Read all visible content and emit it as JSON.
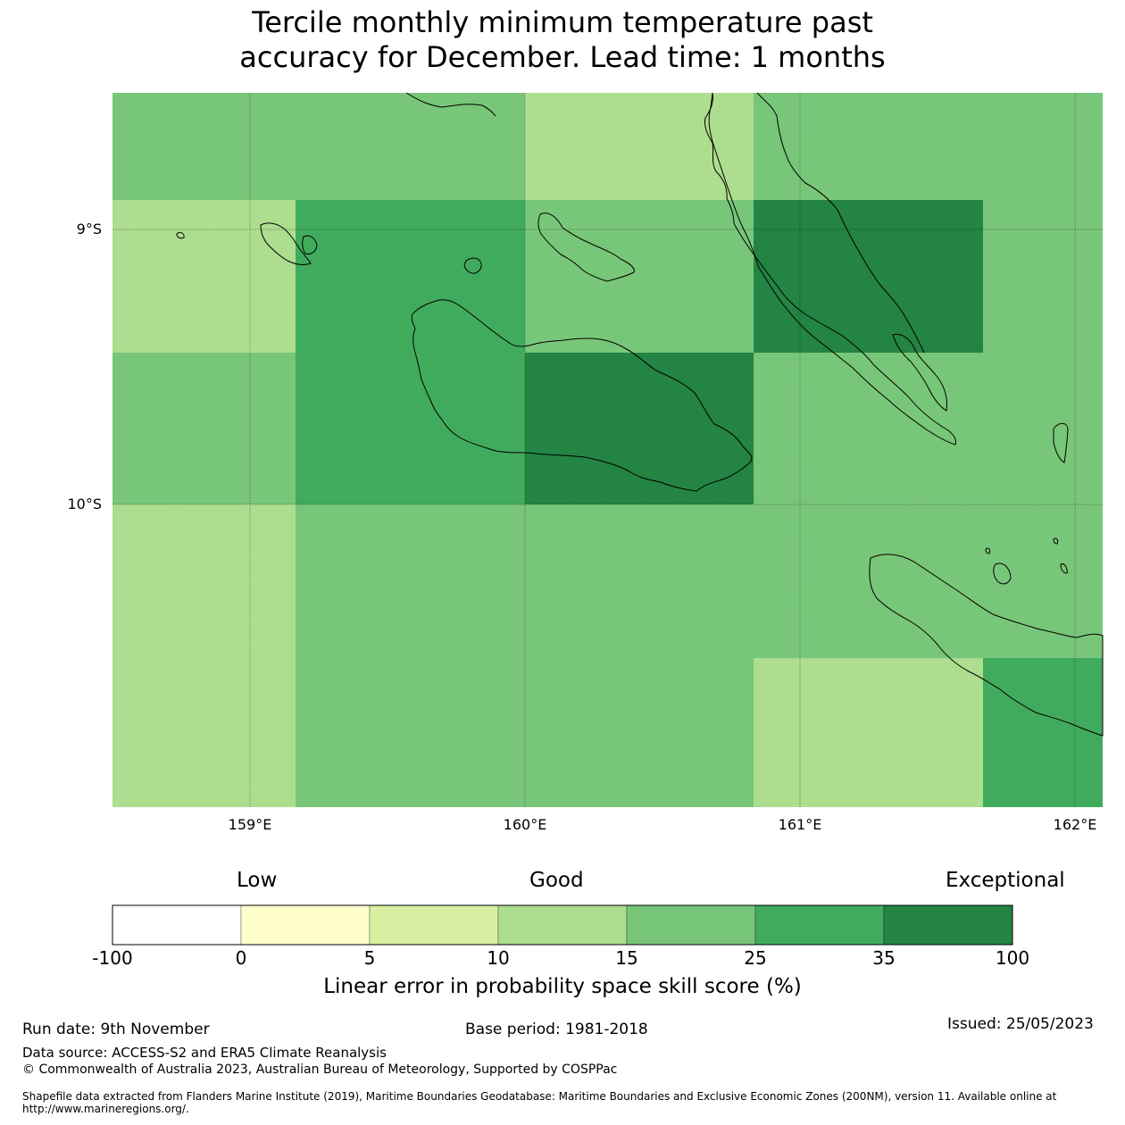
{
  "title": {
    "line1": "Tercile monthly minimum temperature past",
    "line2": "accuracy for December. Lead time: 1 months"
  },
  "map": {
    "lat_labels": [
      "9°S",
      "10°S"
    ],
    "lon_labels": [
      "159°E",
      "160°E",
      "161°E",
      "162°E"
    ],
    "grid_values_percent": [
      [
        25,
        25,
        15,
        25,
        25
      ],
      [
        15,
        35,
        25,
        100,
        25
      ],
      [
        25,
        35,
        100,
        25,
        25
      ],
      [
        15,
        25,
        25,
        25,
        25
      ],
      [
        15,
        25,
        25,
        15,
        35
      ]
    ],
    "cell_colors_note": "bins per colorbar"
  },
  "colorbar": {
    "category_labels": [
      "Low",
      "Good",
      "Exceptional"
    ],
    "colors": [
      "#ffffff",
      "#ffffcc",
      "#d9f0a3",
      "#addd8e",
      "#78c679",
      "#41ab5d",
      "#238443"
    ],
    "ticks": [
      "-100",
      "0",
      "5",
      "10",
      "15",
      "25",
      "35",
      "100"
    ],
    "label": "Linear error in probability space skill score (%)"
  },
  "footer": {
    "run_date": "Run date: 9th November",
    "base_period": "Base period: 1981-2018",
    "issued": "Issued: 25/05/2023",
    "data_source": "Data source: ACCESS-S2 and ERA5 Climate Reanalysis",
    "copyright": "© Commonwealth of Australia 2023, Australian Bureau of Meteorology, Supported by COSPPac",
    "shapefile": "Shapefile data extracted from Flanders Marine Institute (2019), Maritime Boundaries Geodatabase: Maritime Boundaries and Exclusive Economic Zones (200NM), version 11. Available online at http://www.marineregions.org/."
  }
}
